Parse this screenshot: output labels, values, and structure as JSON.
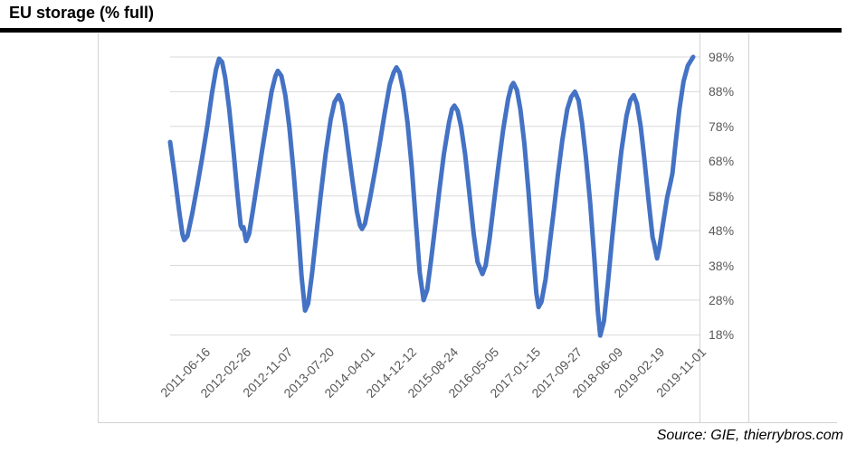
{
  "title": "EU storage (% full)",
  "source": "Source: GIE, thierrybros.com",
  "chart_data": {
    "type": "line",
    "title": "EU storage (% full)",
    "series_name": "EU storage % full",
    "line_color": "#4472C4",
    "grid_color": "#d9d9d9",
    "label_color": "#595959",
    "border_color": "#d2d2d2",
    "legend": "none",
    "grid": "horizontal only",
    "y_axis_side": "right",
    "y_axis": {
      "min": 18,
      "max": 98,
      "step": 10,
      "unit": "%"
    },
    "y_ticks": [
      "98%",
      "88%",
      "78%",
      "68%",
      "58%",
      "48%",
      "38%",
      "28%",
      "18%"
    ],
    "y_tick_values": [
      98,
      88,
      78,
      68,
      58,
      48,
      38,
      28,
      18
    ],
    "x_ticks": [
      "2011-06-16",
      "2012-02-26",
      "2012-11-07",
      "2013-07-20",
      "2014-04-01",
      "2014-12-12",
      "2015-08-24",
      "2016-05-05",
      "2017-01-15",
      "2017-09-27",
      "2018-06-09",
      "2019-02-19",
      "2019-11-01"
    ],
    "points": [
      [
        "2010-12-15",
        73.5
      ],
      [
        "2011-01-12",
        64
      ],
      [
        "2011-02-08",
        54
      ],
      [
        "2011-03-01",
        47
      ],
      [
        "2011-03-12",
        45.3
      ],
      [
        "2011-04-01",
        46.5
      ],
      [
        "2011-05-01",
        53
      ],
      [
        "2011-06-01",
        61
      ],
      [
        "2011-07-01",
        69
      ],
      [
        "2011-08-01",
        78
      ],
      [
        "2011-09-01",
        88
      ],
      [
        "2011-09-25",
        94.5
      ],
      [
        "2011-10-13",
        97.5
      ],
      [
        "2011-11-01",
        96.5
      ],
      [
        "2011-11-20",
        92
      ],
      [
        "2011-12-15",
        83
      ],
      [
        "2012-01-10",
        71
      ],
      [
        "2012-02-05",
        58
      ],
      [
        "2012-02-24",
        49.5
      ],
      [
        "2012-03-05",
        48.5
      ],
      [
        "2012-03-12",
        49
      ],
      [
        "2012-03-28",
        45
      ],
      [
        "2012-04-15",
        47
      ],
      [
        "2012-05-10",
        54
      ],
      [
        "2012-06-05",
        62
      ],
      [
        "2012-07-01",
        70
      ],
      [
        "2012-08-01",
        79
      ],
      [
        "2012-09-01",
        88
      ],
      [
        "2012-09-25",
        92.5
      ],
      [
        "2012-10-10",
        94
      ],
      [
        "2012-11-01",
        92.5
      ],
      [
        "2012-11-25",
        87
      ],
      [
        "2012-12-20",
        78
      ],
      [
        "2013-01-15",
        65
      ],
      [
        "2013-02-10",
        50
      ],
      [
        "2013-03-05",
        35
      ],
      [
        "2013-03-27",
        25
      ],
      [
        "2013-04-15",
        27
      ],
      [
        "2013-05-10",
        36
      ],
      [
        "2013-06-05",
        47
      ],
      [
        "2013-07-01",
        58
      ],
      [
        "2013-08-01",
        70
      ],
      [
        "2013-09-01",
        80
      ],
      [
        "2013-09-25",
        85
      ],
      [
        "2013-10-20",
        87
      ],
      [
        "2013-11-10",
        84.5
      ],
      [
        "2013-12-01",
        78
      ],
      [
        "2013-12-20",
        71
      ],
      [
        "2014-01-15",
        62
      ],
      [
        "2014-02-10",
        53.5
      ],
      [
        "2014-03-01",
        49.5
      ],
      [
        "2014-03-14",
        48.5
      ],
      [
        "2014-04-01",
        50
      ],
      [
        "2014-05-01",
        57
      ],
      [
        "2014-06-01",
        65
      ],
      [
        "2014-07-01",
        73
      ],
      [
        "2014-08-01",
        82
      ],
      [
        "2014-09-01",
        90
      ],
      [
        "2014-09-25",
        93.5
      ],
      [
        "2014-10-12",
        95
      ],
      [
        "2014-11-01",
        93.5
      ],
      [
        "2014-11-25",
        88
      ],
      [
        "2014-12-20",
        79
      ],
      [
        "2015-01-15",
        66
      ],
      [
        "2015-02-10",
        50
      ],
      [
        "2015-03-05",
        36
      ],
      [
        "2015-03-29",
        28
      ],
      [
        "2015-04-20",
        31
      ],
      [
        "2015-05-15",
        40
      ],
      [
        "2015-06-10",
        50
      ],
      [
        "2015-07-05",
        60
      ],
      [
        "2015-08-01",
        70
      ],
      [
        "2015-09-01",
        79
      ],
      [
        "2015-09-20",
        83
      ],
      [
        "2015-10-05",
        84
      ],
      [
        "2015-10-25",
        82.5
      ],
      [
        "2015-11-15",
        78
      ],
      [
        "2015-12-10",
        70
      ],
      [
        "2016-01-05",
        59
      ],
      [
        "2016-02-01",
        47
      ],
      [
        "2016-02-25",
        39
      ],
      [
        "2016-03-26",
        35.5
      ],
      [
        "2016-04-15",
        38
      ],
      [
        "2016-05-10",
        46
      ],
      [
        "2016-06-05",
        56
      ],
      [
        "2016-07-01",
        66
      ],
      [
        "2016-08-01",
        77
      ],
      [
        "2016-09-01",
        86
      ],
      [
        "2016-09-20",
        89.5
      ],
      [
        "2016-10-03",
        90.5
      ],
      [
        "2016-10-25",
        88.5
      ],
      [
        "2016-11-15",
        83
      ],
      [
        "2016-12-10",
        73
      ],
      [
        "2017-01-05",
        59
      ],
      [
        "2017-02-01",
        42
      ],
      [
        "2017-02-22",
        30
      ],
      [
        "2017-03-08",
        26
      ],
      [
        "2017-03-25",
        27.5
      ],
      [
        "2017-04-20",
        34
      ],
      [
        "2017-05-15",
        44
      ],
      [
        "2017-06-10",
        54
      ],
      [
        "2017-07-05",
        64
      ],
      [
        "2017-08-01",
        74
      ],
      [
        "2017-09-01",
        83
      ],
      [
        "2017-09-25",
        86.5
      ],
      [
        "2017-10-18",
        88
      ],
      [
        "2017-11-10",
        85.5
      ],
      [
        "2017-12-01",
        79
      ],
      [
        "2017-12-25",
        69
      ],
      [
        "2018-01-20",
        56
      ],
      [
        "2018-02-15",
        40
      ],
      [
        "2018-03-08",
        25
      ],
      [
        "2018-03-23",
        17.8
      ],
      [
        "2018-04-15",
        22
      ],
      [
        "2018-05-10",
        33
      ],
      [
        "2018-06-05",
        46
      ],
      [
        "2018-07-01",
        58
      ],
      [
        "2018-08-01",
        71
      ],
      [
        "2018-09-01",
        81
      ],
      [
        "2018-09-25",
        85.5
      ],
      [
        "2018-10-16",
        87
      ],
      [
        "2018-11-05",
        84.5
      ],
      [
        "2018-11-28",
        78
      ],
      [
        "2018-12-20",
        69
      ],
      [
        "2019-01-15",
        57
      ],
      [
        "2019-02-10",
        46
      ],
      [
        "2019-02-18",
        44.5
      ],
      [
        "2019-03-09",
        40
      ],
      [
        "2019-03-25",
        43.5
      ],
      [
        "2019-04-15",
        50
      ],
      [
        "2019-05-10",
        57.5
      ],
      [
        "2019-06-01",
        62
      ],
      [
        "2019-06-12",
        64.5
      ],
      [
        "2019-07-01",
        73
      ],
      [
        "2019-07-25",
        83
      ],
      [
        "2019-08-20",
        91
      ],
      [
        "2019-09-15",
        95.5
      ],
      [
        "2019-10-18",
        98
      ]
    ]
  }
}
